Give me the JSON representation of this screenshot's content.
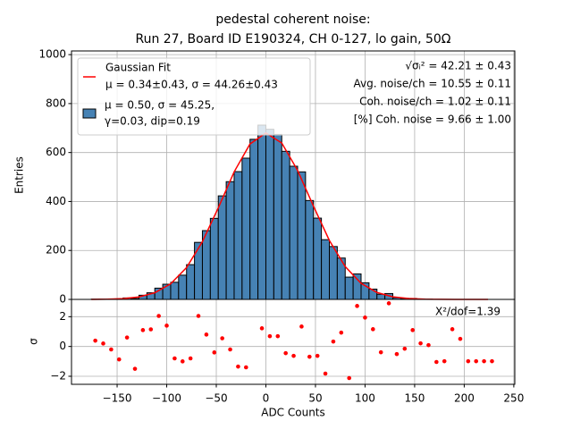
{
  "chart_data": [
    {
      "type": "histogram",
      "title": [
        "pedestal coherent noise:",
        "Run 27, Board ID E190324, CH 0-127, lo gain, 50Ω"
      ],
      "ylabel": "Entries",
      "bins": [
        -176,
        -168,
        -160,
        -152,
        -144,
        -136,
        -128,
        -120,
        -112,
        -104,
        -96,
        -88,
        -80,
        -72,
        -64,
        -56,
        -48,
        -40,
        -32,
        -24,
        -16,
        -8,
        0,
        8,
        16,
        24,
        32,
        40,
        48,
        56,
        64,
        72,
        80,
        88,
        96,
        104,
        112,
        120,
        128,
        136,
        144,
        152,
        160,
        168,
        176,
        184,
        192,
        200,
        208,
        216,
        224,
        232
      ],
      "values": [
        1,
        1,
        1,
        1,
        6,
        4,
        17,
        27,
        46,
        62,
        70,
        99,
        142,
        233,
        281,
        331,
        423,
        481,
        522,
        577,
        654,
        712,
        695,
        674,
        605,
        544,
        521,
        404,
        332,
        244,
        216,
        169,
        91,
        104,
        68,
        42,
        21,
        24,
        7,
        4,
        4,
        2,
        1,
        0,
        0,
        0,
        0,
        0,
        0,
        0,
        0
      ],
      "color": "#4682b4",
      "hist_label": [
        "μ = 0.50, σ = 45.25,",
        "γ=0.03, dip=0.19"
      ],
      "fit": {
        "name": [
          "Gaussian Fit",
          "μ = 0.34±0.43, σ = 44.26±0.43"
        ],
        "color": "#ff0000",
        "x": [
          -176,
          -160,
          -144,
          -128,
          -112,
          -96,
          -80,
          -64,
          -48,
          -32,
          -16,
          0,
          16,
          32,
          48,
          64,
          80,
          96,
          112,
          128,
          144,
          160,
          176,
          192,
          208,
          224
        ],
        "values": [
          0.2,
          1,
          3.3,
          10.2,
          27.1,
          63.7,
          130,
          236,
          374,
          521,
          635,
          680,
          639,
          527,
          381,
          241,
          134,
          65.8,
          28.2,
          10.6,
          3.5,
          1,
          0.26,
          0.06,
          0.01,
          0
        ]
      },
      "annotations": [
        "√σᵢ² = 42.21 ± 0.43",
        "Avg. noise/ch = 10.55 ± 0.11",
        "Coh. noise/ch = 1.02 ± 0.11",
        "[%] Coh. noise = 9.66  ± 1.00"
      ],
      "xlim": [
        -196,
        251
      ],
      "ylim": [
        0,
        1015
      ],
      "yticks": [
        0,
        200,
        400,
        600,
        800,
        1000
      ],
      "grid": true,
      "legend": "upper left"
    },
    {
      "type": "scatter",
      "xlabel": "ADC Counts",
      "ylabel": "σ",
      "x": [
        -172,
        -164,
        -156,
        -148,
        -140,
        -132,
        -124,
        -116,
        -108,
        -100,
        -92,
        -84,
        -76,
        -68,
        -60,
        -52,
        -44,
        -36,
        -28,
        -20,
        -12,
        -4,
        4,
        12,
        20,
        28,
        36,
        44,
        52,
        60,
        68,
        76,
        84,
        92,
        100,
        108,
        116,
        124,
        132,
        140,
        148,
        156,
        164,
        172,
        180,
        188,
        196,
        204,
        212,
        220,
        228
      ],
      "values": [
        0.39,
        0.2,
        -0.2,
        -0.87,
        0.6,
        -1.5,
        1.1,
        1.15,
        2.05,
        1.4,
        -0.8,
        -1.0,
        -0.8,
        2.05,
        0.8,
        -0.4,
        0.55,
        -0.2,
        -1.35,
        -1.4,
        null,
        1.22,
        0.69,
        0.69,
        -0.45,
        -0.63,
        1.34,
        -0.69,
        -0.63,
        -1.82,
        0.33,
        0.93,
        -2.12,
        2.72,
        1.94,
        1.16,
        -0.39,
        2.9,
        -0.51,
        -0.15,
        1.1,
        0.21,
        0.09,
        -1.04,
        -0.99,
        1.16,
        0.51,
        -0.99,
        -0.99,
        -0.99,
        -0.99
      ],
      "color": "#ff0000",
      "annotation": "X²/dof=1.39",
      "xlim": [
        -196,
        251
      ],
      "ylim": [
        -2.54,
        3.16
      ],
      "xticks": [
        {
          "value": -150,
          "label": "−150"
        },
        {
          "value": -100,
          "label": "−100"
        },
        {
          "value": -50,
          "label": "−50"
        },
        0,
        50,
        100,
        150,
        200,
        250
      ],
      "yticks": [
        {
          "value": -2,
          "label": "−2"
        },
        0,
        2
      ],
      "grid": true
    }
  ]
}
